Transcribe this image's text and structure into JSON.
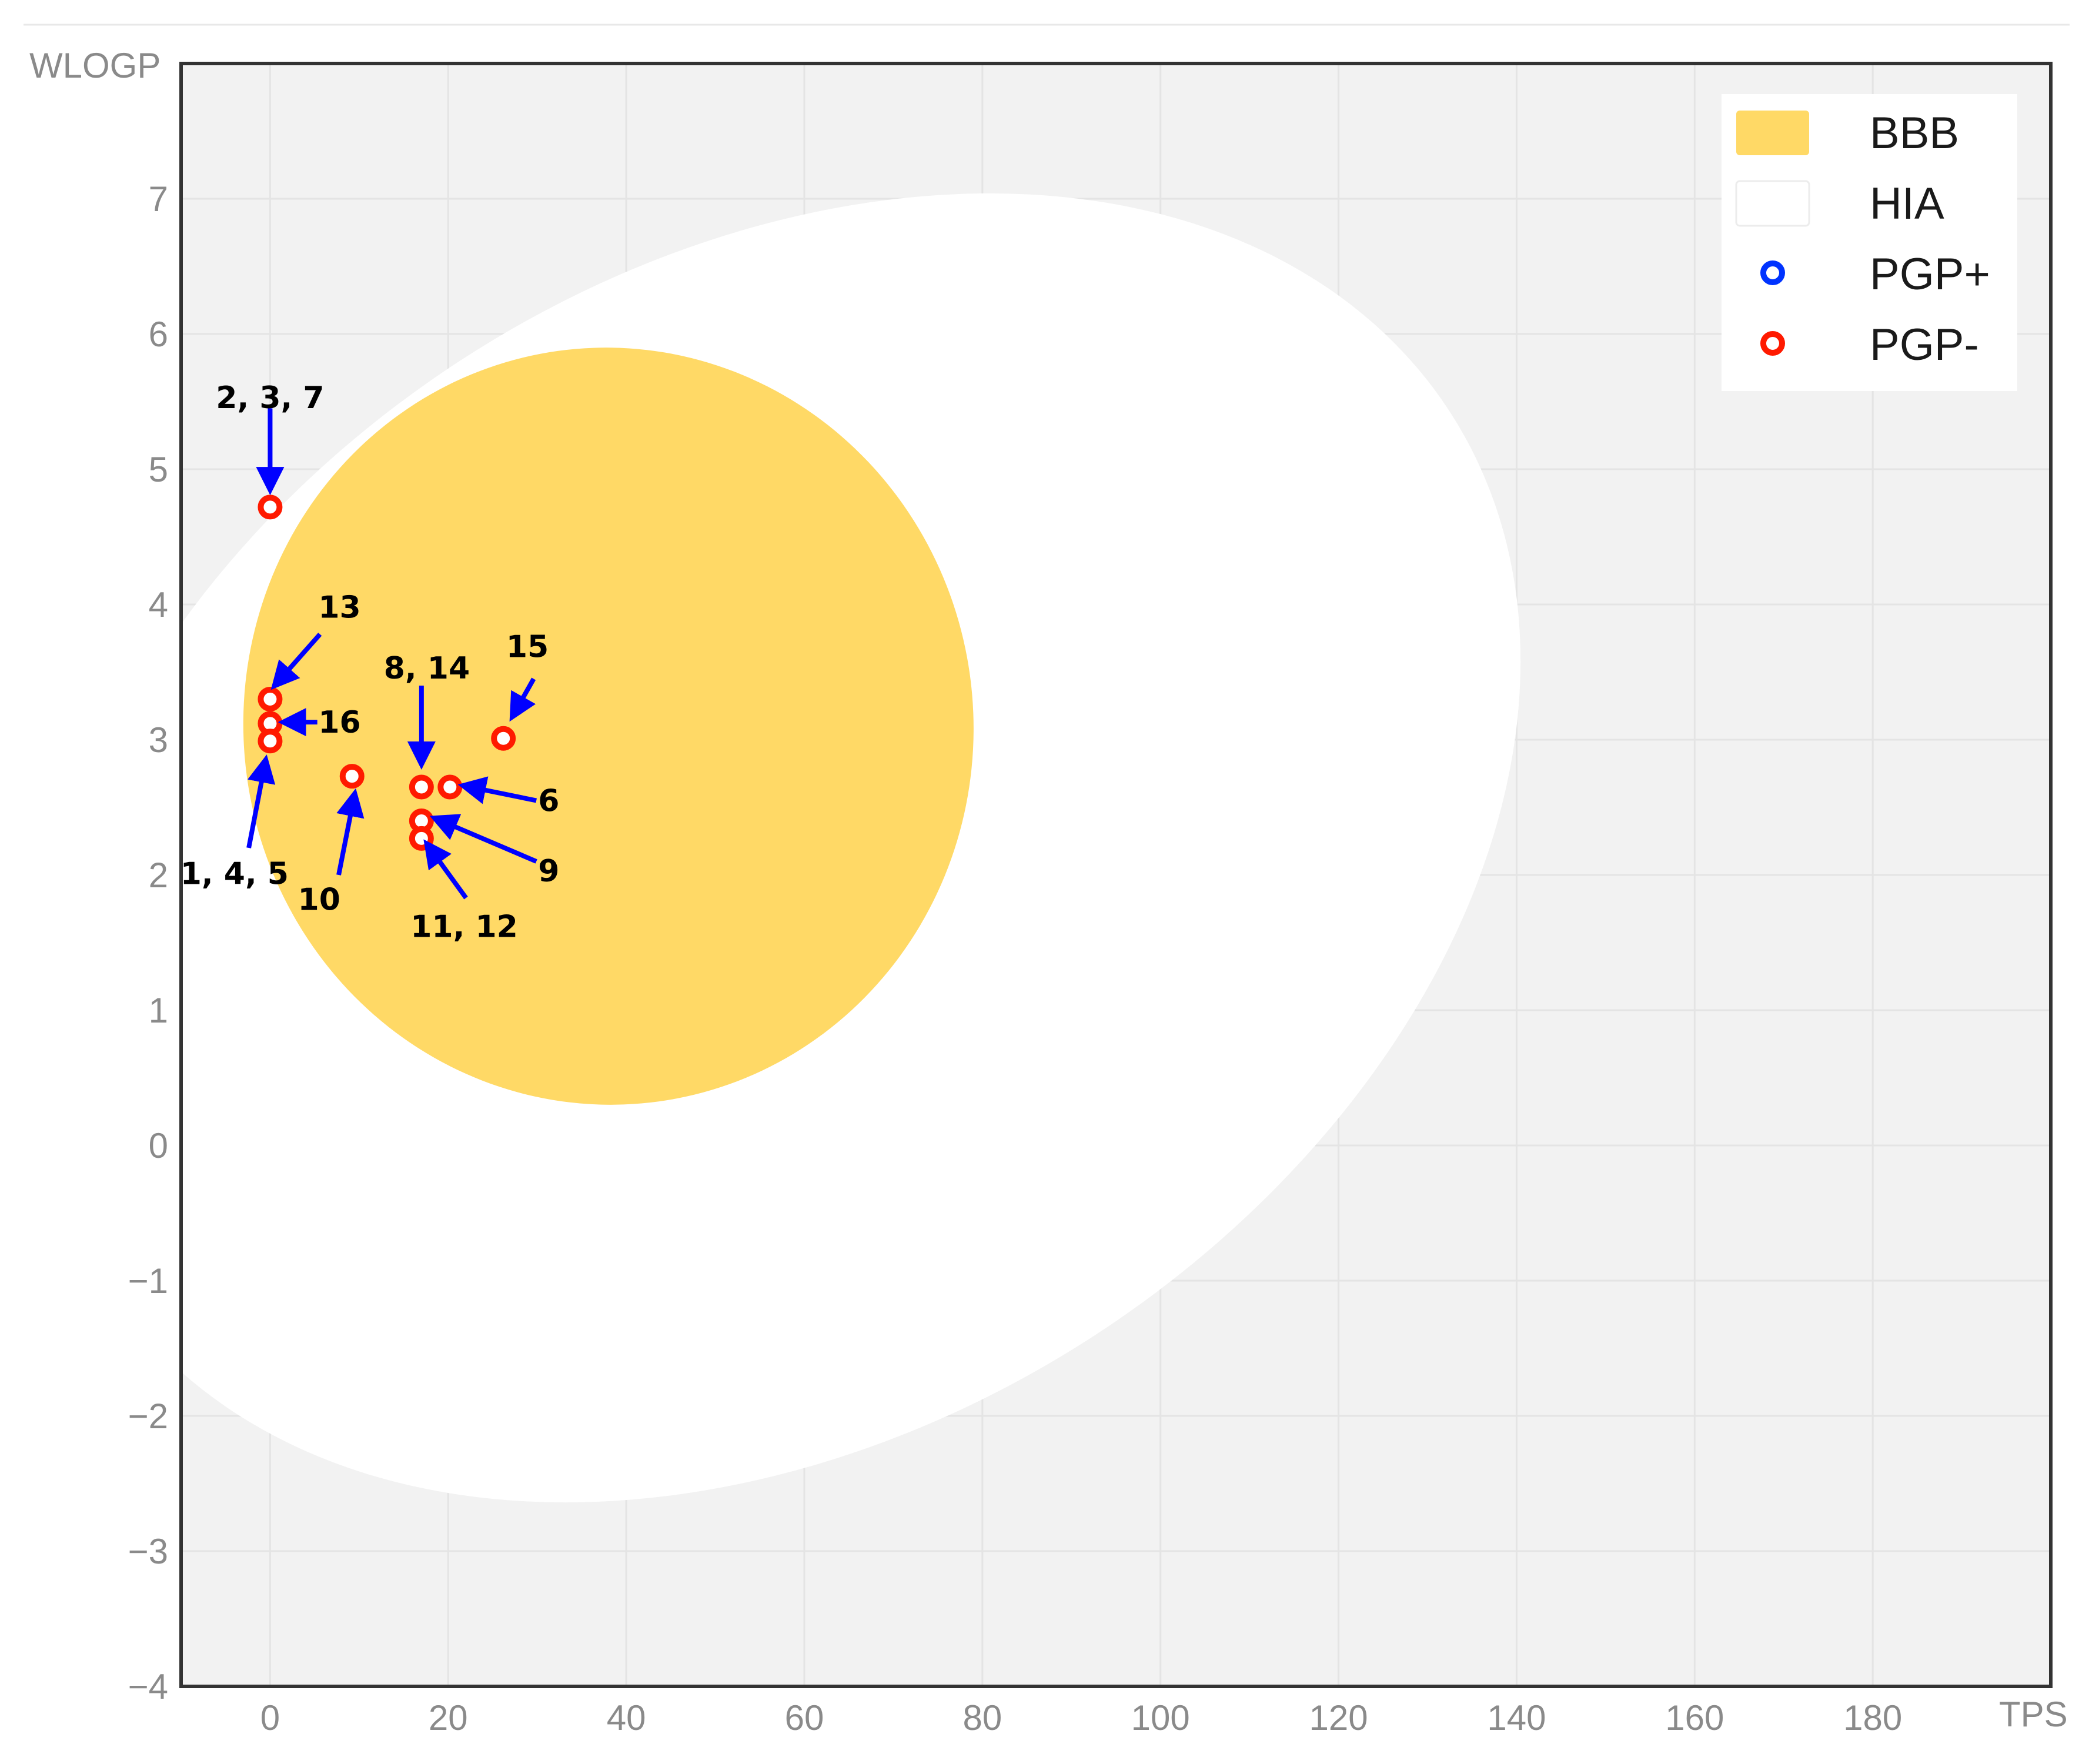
{
  "chart_data": {
    "type": "scatter",
    "xlabel": "TPS",
    "ylabel": "WLOGP",
    "xlim": [
      -10,
      200
    ],
    "ylim": [
      -4,
      8
    ],
    "x_ticks": [
      0,
      20,
      40,
      60,
      80,
      100,
      120,
      140,
      160,
      180
    ],
    "y_ticks": [
      -4,
      -3,
      -2,
      -1,
      0,
      1,
      2,
      3,
      4,
      5,
      6,
      7
    ],
    "grid": true,
    "legend_position": "top-right",
    "colors": {
      "plot_background": "#f2f2f2",
      "bbb": "#ffd966",
      "hia": "#ffffff",
      "pgp_plus": "#0033ff",
      "pgp_minus": "#ff1a00",
      "arrow": "#0000ff"
    },
    "regions": [
      {
        "name": "HIA",
        "center": [
          57,
          2.2
        ],
        "radius_x": 90,
        "radius_y": 4.3,
        "rotation_deg": -33
      },
      {
        "name": "BBB",
        "center": [
          38,
          3.1
        ],
        "radius_x": 41,
        "radius_y": 2.8,
        "rotation_deg": -5
      }
    ],
    "legend": [
      {
        "label": "BBB",
        "kind": "swatch",
        "color": "#ffd966"
      },
      {
        "label": "HIA",
        "kind": "swatch",
        "color": "#ffffff"
      },
      {
        "label": "PGP+",
        "kind": "marker",
        "color": "#0033ff"
      },
      {
        "label": "PGP-",
        "kind": "marker",
        "color": "#ff1a00"
      }
    ],
    "series": [
      {
        "name": "PGP-",
        "points": [
          {
            "x": 0,
            "y": 4.72
          },
          {
            "x": 0,
            "y": 3.3
          },
          {
            "x": 0,
            "y": 3.12
          },
          {
            "x": 0,
            "y": 2.99
          },
          {
            "x": 9.2,
            "y": 2.73
          },
          {
            "x": 17,
            "y": 2.65
          },
          {
            "x": 20.2,
            "y": 2.65
          },
          {
            "x": 17,
            "y": 2.4
          },
          {
            "x": 17,
            "y": 2.27
          },
          {
            "x": 26.2,
            "y": 3.01
          }
        ]
      },
      {
        "name": "PGP+",
        "points": []
      }
    ],
    "annotations": [
      {
        "text": "2, 3, 7",
        "label_at": [
          0,
          5.53
        ],
        "arrow_from": [
          0,
          5.45
        ],
        "arrow_to": [
          0,
          4.85
        ]
      },
      {
        "text": "13",
        "label_at": [
          7.8,
          3.98
        ],
        "arrow_from": [
          5.6,
          3.78
        ],
        "arrow_to": [
          0.5,
          3.4
        ]
      },
      {
        "text": "16",
        "label_at": [
          7.8,
          3.13
        ],
        "arrow_from": [
          5.3,
          3.13
        ],
        "arrow_to": [
          1.5,
          3.13
        ]
      },
      {
        "text": "1, 4, 5",
        "label_at": [
          -4,
          2.01
        ],
        "arrow_from": [
          -2.4,
          2.2
        ],
        "arrow_to": [
          -0.5,
          2.85
        ]
      },
      {
        "text": "10",
        "label_at": [
          5.5,
          1.82
        ],
        "arrow_from": [
          7.7,
          2.0
        ],
        "arrow_to": [
          9.5,
          2.6
        ]
      },
      {
        "text": "8, 14",
        "label_at": [
          17.6,
          3.53
        ],
        "arrow_from": [
          17,
          3.4
        ],
        "arrow_to": [
          17,
          2.82
        ]
      },
      {
        "text": "15",
        "label_at": [
          28.9,
          3.69
        ],
        "arrow_from": [
          29.6,
          3.45
        ],
        "arrow_to": [
          27.2,
          3.17
        ]
      },
      {
        "text": "6",
        "label_at": [
          31.3,
          2.55
        ],
        "arrow_from": [
          29.9,
          2.55
        ],
        "arrow_to": [
          21.7,
          2.66
        ]
      },
      {
        "text": "9",
        "label_at": [
          31.3,
          2.03
        ],
        "arrow_from": [
          29.9,
          2.1
        ],
        "arrow_to": [
          18.5,
          2.42
        ]
      },
      {
        "text": "11, 12",
        "label_at": [
          21.8,
          1.62
        ],
        "arrow_from": [
          22,
          1.83
        ],
        "arrow_to": [
          17.6,
          2.23
        ]
      }
    ]
  }
}
